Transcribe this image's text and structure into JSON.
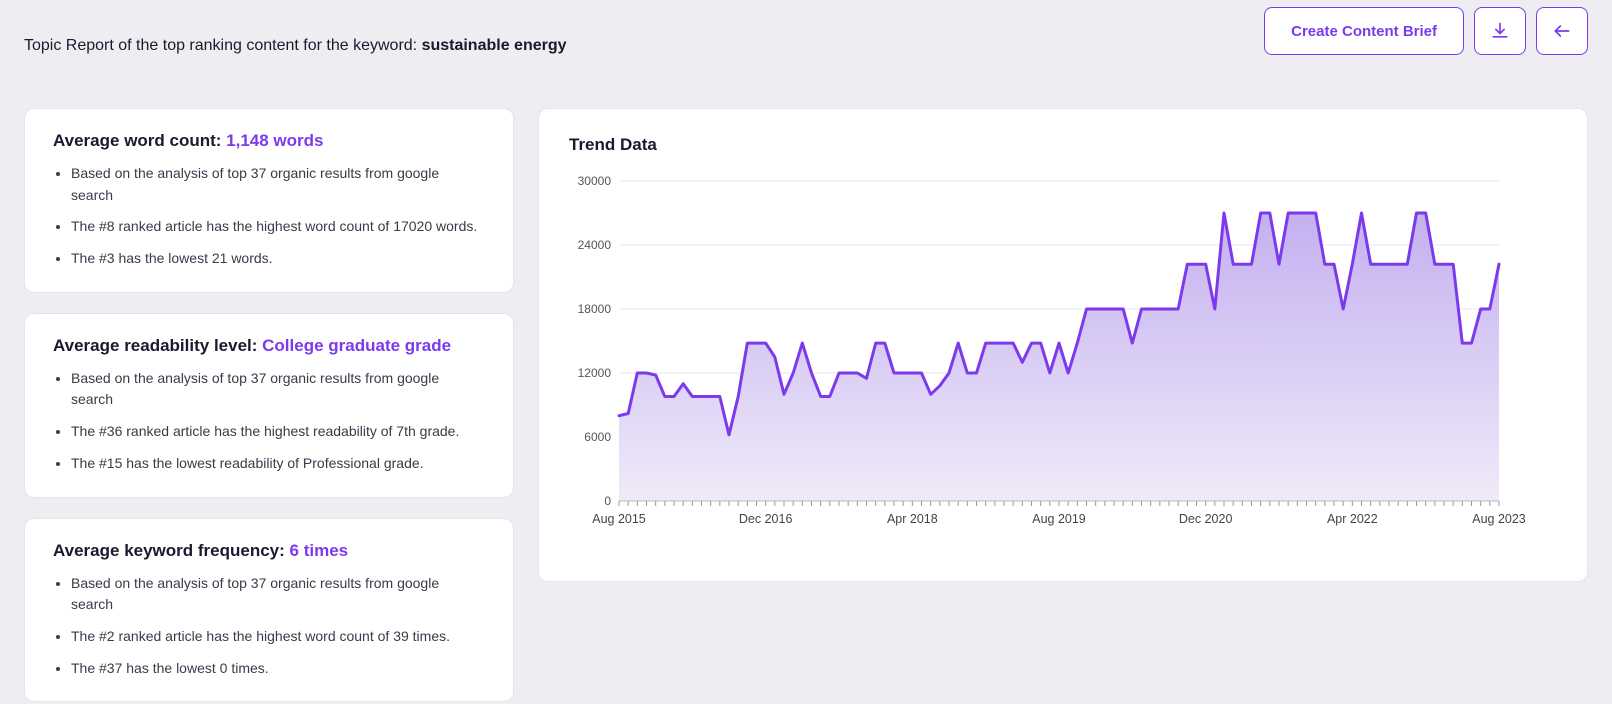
{
  "header": {
    "title_prefix": "Topic Report of the top ranking content for the keyword: ",
    "keyword": "sustainable energy",
    "create_brief_label": "Create Content Brief"
  },
  "metrics": {
    "word_count": {
      "title_label": "Average word count: ",
      "title_value": "1,148 words",
      "bullets": [
        "Based on the analysis of top 37 organic results from google search",
        "The #8 ranked article has the highest word count of 17020 words.",
        "The #3 has the lowest 21 words."
      ]
    },
    "readability": {
      "title_label": "Average readability level: ",
      "title_value": "College graduate grade",
      "bullets": [
        "Based on the analysis of top 37 organic results from google search",
        "The #36 ranked article has the highest readability of 7th grade.",
        "The #15 has the lowest readability of Professional grade."
      ]
    },
    "keyword_freq": {
      "title_label": "Average keyword frequency: ",
      "title_value": "6 times",
      "bullets": [
        "Based on the analysis of top 37 organic results from google search",
        "The #2 ranked article has the highest word count of 39 times.",
        "The #37 has the lowest 0 times."
      ]
    }
  },
  "trend_chart": {
    "title": "Trend Data",
    "type": "area",
    "line_color": "#7c3aed",
    "line_width": 3,
    "fill_gradient_top": "#c4b0f0",
    "fill_gradient_bottom": "#efeaf9",
    "grid_color": "#e5e5ef",
    "background_color": "#ffffff",
    "y_axis": {
      "min": 0,
      "max": 30000,
      "ticks": [
        0,
        6000,
        12000,
        18000,
        24000,
        30000
      ],
      "tick_labels": [
        "0",
        "6000",
        "12000",
        "18000",
        "24000",
        "30000"
      ]
    },
    "x_axis": {
      "min": 0,
      "max": 96,
      "minor_tick_step": 1,
      "label_positions": [
        0,
        16,
        32,
        48,
        64,
        80,
        96
      ],
      "labels": [
        "Aug 2015",
        "Dec 2016",
        "Apr 2018",
        "Aug 2019",
        "Dec 2020",
        "Apr 2022",
        "Aug 2023"
      ]
    },
    "series": [
      8000,
      8200,
      12000,
      12000,
      11800,
      9800,
      9800,
      11000,
      9800,
      9800,
      9800,
      9800,
      6200,
      9800,
      14800,
      14800,
      14800,
      13500,
      10000,
      12000,
      14800,
      12000,
      9800,
      9800,
      12000,
      12000,
      12000,
      11500,
      14800,
      14800,
      12000,
      12000,
      12000,
      12000,
      10000,
      10800,
      12000,
      14800,
      12000,
      12000,
      14800,
      14800,
      14800,
      14800,
      13000,
      14800,
      14800,
      12000,
      14800,
      12000,
      14800,
      18000,
      18000,
      18000,
      18000,
      18000,
      14800,
      18000,
      18000,
      18000,
      18000,
      18000,
      22200,
      22200,
      22200,
      18000,
      27000,
      22200,
      22200,
      22200,
      27000,
      27000,
      22200,
      27000,
      27000,
      27000,
      27000,
      22200,
      22200,
      18000,
      22200,
      27000,
      22200,
      22200,
      22200,
      22200,
      22200,
      27000,
      27000,
      22200,
      22200,
      22200,
      14800,
      14800,
      18000,
      18000,
      22200
    ]
  }
}
